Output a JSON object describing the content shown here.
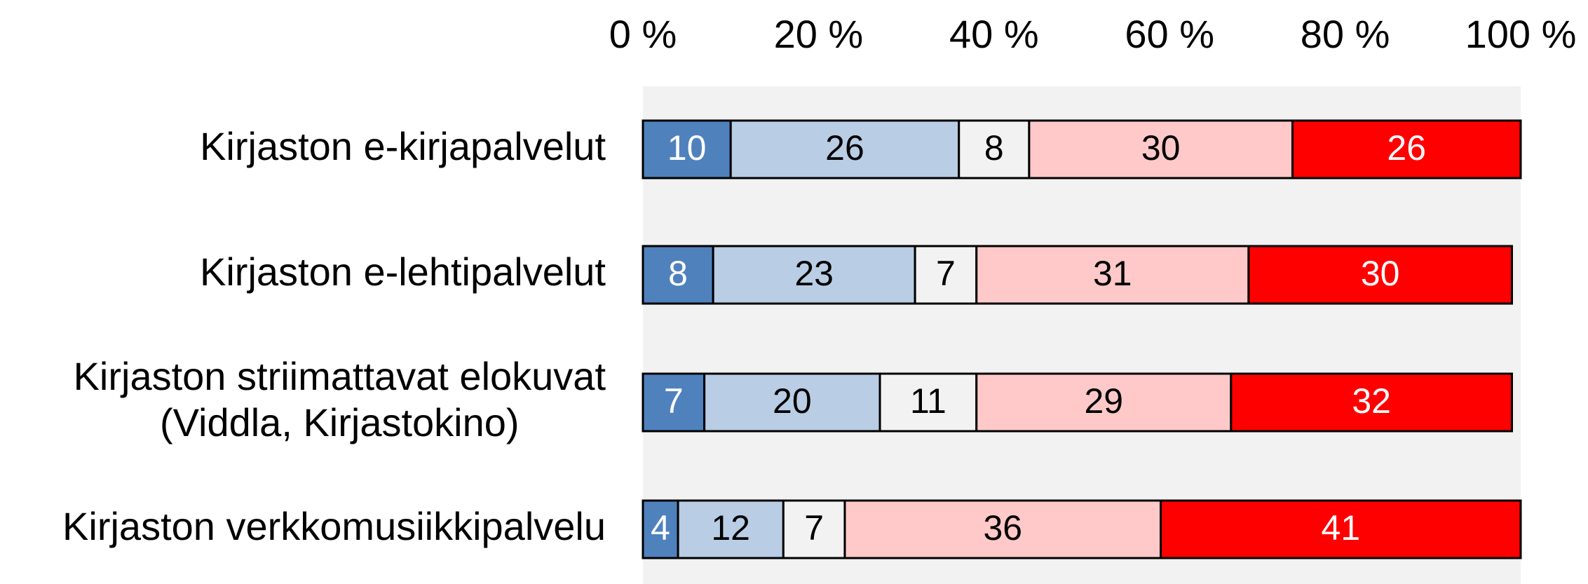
{
  "chart_data": {
    "type": "stacked_barh",
    "categories": [
      "Kirjaston e-kirjapalvelut",
      "Kirjaston e-lehtipalvelut",
      "Kirjaston striimattavat elokuvat\n(Viddla, Kirjastokino)",
      "Kirjaston verkkomusiikkipalvelu"
    ],
    "series": [
      {
        "color": "#4f81bd",
        "label_color": "#ffffff",
        "values": [
          10,
          8,
          7,
          4
        ]
      },
      {
        "color": "#b9cde5",
        "label_color": "#000000",
        "values": [
          26,
          23,
          20,
          12
        ]
      },
      {
        "color": "#f2f2f2",
        "label_color": "#000000",
        "values": [
          8,
          7,
          11,
          7
        ]
      },
      {
        "color": "#ffc9c9",
        "label_color": "#000000",
        "values": [
          30,
          31,
          29,
          36
        ]
      },
      {
        "color": "#ff0000",
        "label_color": "#ffffff",
        "values": [
          26,
          30,
          32,
          41
        ]
      }
    ],
    "xlim": [
      0,
      100
    ],
    "xticks": [
      {
        "value": 0,
        "label": "0 %"
      },
      {
        "value": 20,
        "label": "20 %"
      },
      {
        "value": 40,
        "label": "40 %"
      },
      {
        "value": 60,
        "label": "60 %"
      },
      {
        "value": 80,
        "label": "80 %"
      },
      {
        "value": 100,
        "label": "100 %"
      }
    ],
    "plot_background": "#f2f2f2"
  }
}
